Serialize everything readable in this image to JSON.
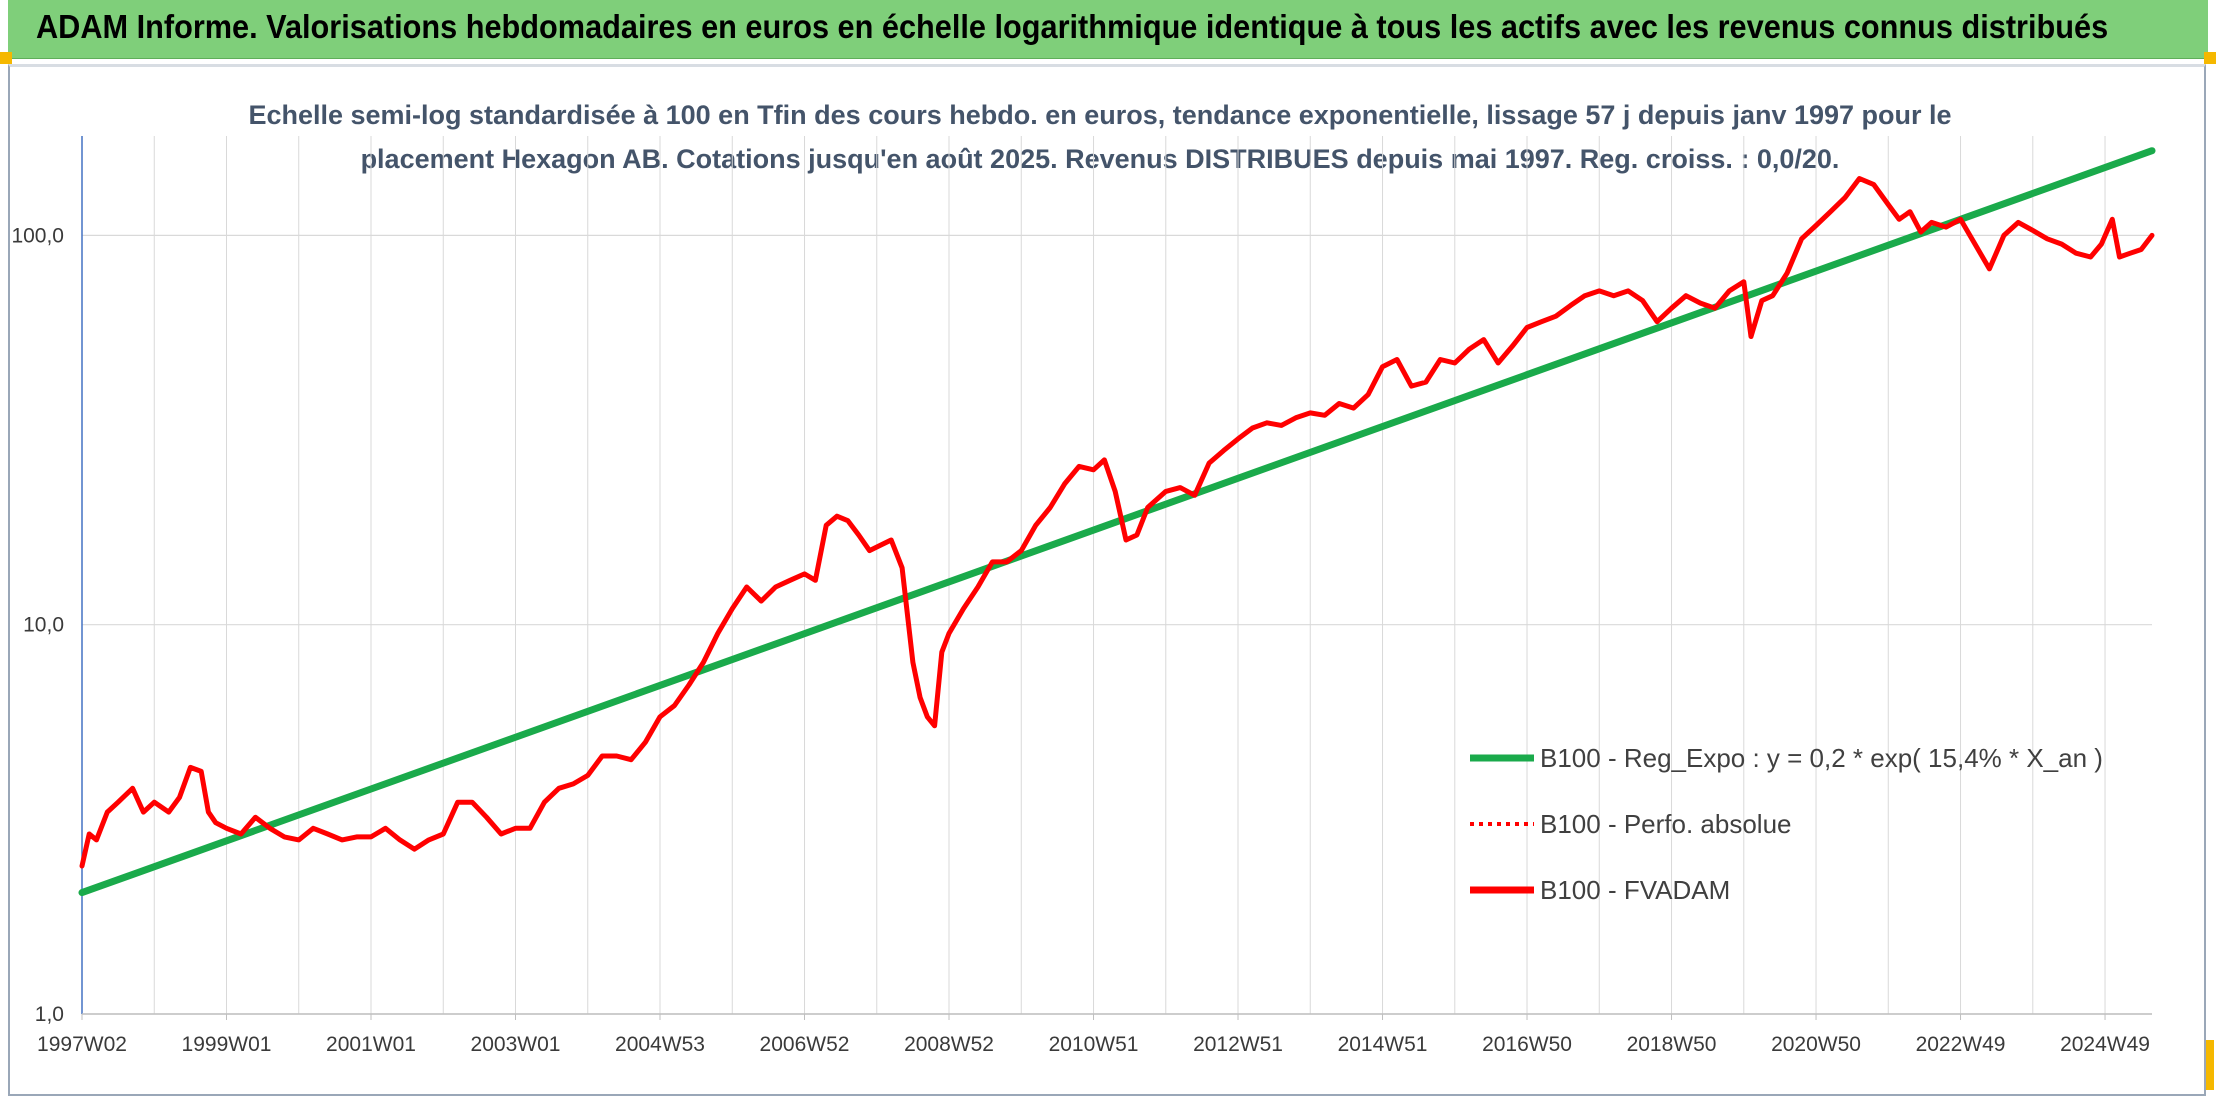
{
  "header": {
    "title": "ADAM Informe. Valorisations hebdomadaires en euros en échelle logarithmique identique à tous les actifs avec les revenus connus distribués"
  },
  "chart_data": {
    "type": "line",
    "title": "",
    "subtitle_lines": [
      "Echelle semi-log standardisée à 100 en Tfin des cours hebdo. en euros, tendance exponentielle, lissage 57 j depuis janv 1997 pour le",
      "placement Hexagon AB. Cotations jusqu'en août 2025. Revenus DISTRIBUES depuis mai 1997. Reg. croiss. : 0,0/20."
    ],
    "xlabel": "",
    "ylabel": "",
    "y_scale": "log",
    "ylim": [
      1,
      180
    ],
    "y_ticks": [
      "1,0",
      "10,0",
      "100,0"
    ],
    "x_range": [
      1997.0,
      2025.65
    ],
    "x_ticks": [
      {
        "x": 1997.0,
        "label": "1997W02"
      },
      {
        "x": 1999.0,
        "label": "1999W01"
      },
      {
        "x": 2001.0,
        "label": "2001W01"
      },
      {
        "x": 2003.0,
        "label": "2003W01"
      },
      {
        "x": 2005.0,
        "label": "2004W53"
      },
      {
        "x": 2007.0,
        "label": "2006W52"
      },
      {
        "x": 2009.0,
        "label": "2008W52"
      },
      {
        "x": 2011.0,
        "label": "2010W51"
      },
      {
        "x": 2013.0,
        "label": "2012W51"
      },
      {
        "x": 2015.0,
        "label": "2014W51"
      },
      {
        "x": 2017.0,
        "label": "2016W50"
      },
      {
        "x": 2019.0,
        "label": "2018W50"
      },
      {
        "x": 2021.0,
        "label": "2020W50"
      },
      {
        "x": 2023.0,
        "label": "2022W49"
      },
      {
        "x": 2025.0,
        "label": "2024W49"
      }
    ],
    "grid": true,
    "legend_position": "bottom-right",
    "series": [
      {
        "name": "B100 - Reg_Expo : y = 0,2 * exp( 15,4% *  X_an )",
        "color": "#1aaa4b",
        "style": "solid",
        "x": [
          1997.0,
          2025.65
        ],
        "y": [
          2.05,
          165
        ]
      },
      {
        "name": "B100 - Perfo. absolue",
        "color": "#ff0000",
        "style": "dotted",
        "x": [],
        "y": []
      },
      {
        "name": "B100 - FVADAM",
        "color": "#ff0000",
        "style": "solid",
        "x": [
          1997.0,
          1997.1,
          1997.2,
          1997.35,
          1997.5,
          1997.7,
          1997.85,
          1998.0,
          1998.2,
          1998.35,
          1998.5,
          1998.65,
          1998.75,
          1998.85,
          1999.0,
          1999.2,
          1999.4,
          1999.6,
          1999.8,
          2000.0,
          2000.2,
          2000.4,
          2000.6,
          2000.8,
          2001.0,
          2001.2,
          2001.4,
          2001.6,
          2001.8,
          2002.0,
          2002.2,
          2002.4,
          2002.6,
          2002.8,
          2003.0,
          2003.2,
          2003.4,
          2003.6,
          2003.8,
          2004.0,
          2004.2,
          2004.4,
          2004.6,
          2004.8,
          2005.0,
          2005.2,
          2005.4,
          2005.6,
          2005.8,
          2006.0,
          2006.2,
          2006.4,
          2006.6,
          2006.8,
          2007.0,
          2007.15,
          2007.3,
          2007.45,
          2007.6,
          2007.75,
          2007.9,
          2008.05,
          2008.2,
          2008.35,
          2008.5,
          2008.6,
          2008.7,
          2008.8,
          2008.9,
          2009.0,
          2009.2,
          2009.4,
          2009.6,
          2009.8,
          2010.0,
          2010.2,
          2010.4,
          2010.6,
          2010.8,
          2011.0,
          2011.15,
          2011.3,
          2011.45,
          2011.6,
          2011.75,
          2012.0,
          2012.2,
          2012.4,
          2012.6,
          2012.8,
          2013.0,
          2013.2,
          2013.4,
          2013.6,
          2013.8,
          2014.0,
          2014.2,
          2014.4,
          2014.6,
          2014.8,
          2015.0,
          2015.2,
          2015.4,
          2015.6,
          2015.8,
          2016.0,
          2016.2,
          2016.4,
          2016.6,
          2016.8,
          2017.0,
          2017.2,
          2017.4,
          2017.6,
          2017.8,
          2018.0,
          2018.2,
          2018.4,
          2018.6,
          2018.8,
          2019.0,
          2019.2,
          2019.4,
          2019.6,
          2019.8,
          2020.0,
          2020.1,
          2020.25,
          2020.4,
          2020.6,
          2020.8,
          2021.0,
          2021.2,
          2021.4,
          2021.6,
          2021.8,
          2022.0,
          2022.15,
          2022.3,
          2022.45,
          2022.6,
          2022.8,
          2023.0,
          2023.2,
          2023.4,
          2023.6,
          2023.8,
          2024.0,
          2024.2,
          2024.4,
          2024.6,
          2024.8,
          2024.95,
          2025.1,
          2025.2,
          2025.35,
          2025.5,
          2025.65
        ],
        "y": [
          2.4,
          2.9,
          2.8,
          3.3,
          3.5,
          3.8,
          3.3,
          3.5,
          3.3,
          3.6,
          4.3,
          4.2,
          3.3,
          3.1,
          3.0,
          2.9,
          3.2,
          3.0,
          2.85,
          2.8,
          3.0,
          2.9,
          2.8,
          2.85,
          2.85,
          3.0,
          2.8,
          2.65,
          2.8,
          2.9,
          3.5,
          3.5,
          3.2,
          2.9,
          3.0,
          3.0,
          3.5,
          3.8,
          3.9,
          4.1,
          4.6,
          4.6,
          4.5,
          5.0,
          5.8,
          6.2,
          7.0,
          8.0,
          9.5,
          11.0,
          12.5,
          11.5,
          12.5,
          13.0,
          13.5,
          13.0,
          18.0,
          19.0,
          18.5,
          17.0,
          15.5,
          16.0,
          16.5,
          14.0,
          8.0,
          6.5,
          5.8,
          5.5,
          8.5,
          9.5,
          11.0,
          12.5,
          14.5,
          14.5,
          15.5,
          18.0,
          20.0,
          23.0,
          25.5,
          25.0,
          26.5,
          22.0,
          16.5,
          17.0,
          20.0,
          22.0,
          22.5,
          21.5,
          26.0,
          28.0,
          30.0,
          32.0,
          33.0,
          32.5,
          34.0,
          35.0,
          34.5,
          37.0,
          36.0,
          39.0,
          46.0,
          48.0,
          41.0,
          42.0,
          48.0,
          47.0,
          51.0,
          54.0,
          47.0,
          52.0,
          58.0,
          60.0,
          62.0,
          66.0,
          70.0,
          72.0,
          70.0,
          72.0,
          68.0,
          60.0,
          65.0,
          70.0,
          67.0,
          65.0,
          72.0,
          76.0,
          55.0,
          68.0,
          70.0,
          80.0,
          98.0,
          106.0,
          115.0,
          125.0,
          140.0,
          135.0,
          120.0,
          110.0,
          115.0,
          102.0,
          108.0,
          105.0,
          110.0,
          95.0,
          82.0,
          100.0,
          108.0,
          103.0,
          98.0,
          95.0,
          90.0,
          88.0,
          95.0,
          110.0,
          88.0,
          90.0,
          92.0,
          100.0
        ]
      }
    ]
  }
}
